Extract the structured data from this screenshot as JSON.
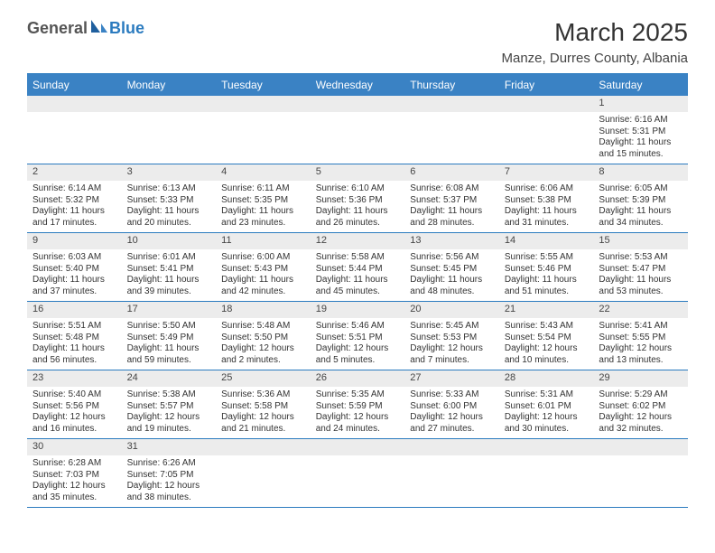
{
  "logo": {
    "general": "General",
    "blue": "Blue"
  },
  "title": "March 2025",
  "location": "Manze, Durres County, Albania",
  "dayNames": [
    "Sunday",
    "Monday",
    "Tuesday",
    "Wednesday",
    "Thursday",
    "Friday",
    "Saturday"
  ],
  "colors": {
    "headerBg": "#3a82c4",
    "border": "#2b7bbf",
    "numRowBg": "#ececec"
  },
  "weeks": [
    {
      "nums": [
        "",
        "",
        "",
        "",
        "",
        "",
        "1"
      ],
      "info": [
        null,
        null,
        null,
        null,
        null,
        null,
        {
          "sunrise": "Sunrise: 6:16 AM",
          "sunset": "Sunset: 5:31 PM",
          "daylight1": "Daylight: 11 hours",
          "daylight2": "and 15 minutes."
        }
      ]
    },
    {
      "nums": [
        "2",
        "3",
        "4",
        "5",
        "6",
        "7",
        "8"
      ],
      "info": [
        {
          "sunrise": "Sunrise: 6:14 AM",
          "sunset": "Sunset: 5:32 PM",
          "daylight1": "Daylight: 11 hours",
          "daylight2": "and 17 minutes."
        },
        {
          "sunrise": "Sunrise: 6:13 AM",
          "sunset": "Sunset: 5:33 PM",
          "daylight1": "Daylight: 11 hours",
          "daylight2": "and 20 minutes."
        },
        {
          "sunrise": "Sunrise: 6:11 AM",
          "sunset": "Sunset: 5:35 PM",
          "daylight1": "Daylight: 11 hours",
          "daylight2": "and 23 minutes."
        },
        {
          "sunrise": "Sunrise: 6:10 AM",
          "sunset": "Sunset: 5:36 PM",
          "daylight1": "Daylight: 11 hours",
          "daylight2": "and 26 minutes."
        },
        {
          "sunrise": "Sunrise: 6:08 AM",
          "sunset": "Sunset: 5:37 PM",
          "daylight1": "Daylight: 11 hours",
          "daylight2": "and 28 minutes."
        },
        {
          "sunrise": "Sunrise: 6:06 AM",
          "sunset": "Sunset: 5:38 PM",
          "daylight1": "Daylight: 11 hours",
          "daylight2": "and 31 minutes."
        },
        {
          "sunrise": "Sunrise: 6:05 AM",
          "sunset": "Sunset: 5:39 PM",
          "daylight1": "Daylight: 11 hours",
          "daylight2": "and 34 minutes."
        }
      ]
    },
    {
      "nums": [
        "9",
        "10",
        "11",
        "12",
        "13",
        "14",
        "15"
      ],
      "info": [
        {
          "sunrise": "Sunrise: 6:03 AM",
          "sunset": "Sunset: 5:40 PM",
          "daylight1": "Daylight: 11 hours",
          "daylight2": "and 37 minutes."
        },
        {
          "sunrise": "Sunrise: 6:01 AM",
          "sunset": "Sunset: 5:41 PM",
          "daylight1": "Daylight: 11 hours",
          "daylight2": "and 39 minutes."
        },
        {
          "sunrise": "Sunrise: 6:00 AM",
          "sunset": "Sunset: 5:43 PM",
          "daylight1": "Daylight: 11 hours",
          "daylight2": "and 42 minutes."
        },
        {
          "sunrise": "Sunrise: 5:58 AM",
          "sunset": "Sunset: 5:44 PM",
          "daylight1": "Daylight: 11 hours",
          "daylight2": "and 45 minutes."
        },
        {
          "sunrise": "Sunrise: 5:56 AM",
          "sunset": "Sunset: 5:45 PM",
          "daylight1": "Daylight: 11 hours",
          "daylight2": "and 48 minutes."
        },
        {
          "sunrise": "Sunrise: 5:55 AM",
          "sunset": "Sunset: 5:46 PM",
          "daylight1": "Daylight: 11 hours",
          "daylight2": "and 51 minutes."
        },
        {
          "sunrise": "Sunrise: 5:53 AM",
          "sunset": "Sunset: 5:47 PM",
          "daylight1": "Daylight: 11 hours",
          "daylight2": "and 53 minutes."
        }
      ]
    },
    {
      "nums": [
        "16",
        "17",
        "18",
        "19",
        "20",
        "21",
        "22"
      ],
      "info": [
        {
          "sunrise": "Sunrise: 5:51 AM",
          "sunset": "Sunset: 5:48 PM",
          "daylight1": "Daylight: 11 hours",
          "daylight2": "and 56 minutes."
        },
        {
          "sunrise": "Sunrise: 5:50 AM",
          "sunset": "Sunset: 5:49 PM",
          "daylight1": "Daylight: 11 hours",
          "daylight2": "and 59 minutes."
        },
        {
          "sunrise": "Sunrise: 5:48 AM",
          "sunset": "Sunset: 5:50 PM",
          "daylight1": "Daylight: 12 hours",
          "daylight2": "and 2 minutes."
        },
        {
          "sunrise": "Sunrise: 5:46 AM",
          "sunset": "Sunset: 5:51 PM",
          "daylight1": "Daylight: 12 hours",
          "daylight2": "and 5 minutes."
        },
        {
          "sunrise": "Sunrise: 5:45 AM",
          "sunset": "Sunset: 5:53 PM",
          "daylight1": "Daylight: 12 hours",
          "daylight2": "and 7 minutes."
        },
        {
          "sunrise": "Sunrise: 5:43 AM",
          "sunset": "Sunset: 5:54 PM",
          "daylight1": "Daylight: 12 hours",
          "daylight2": "and 10 minutes."
        },
        {
          "sunrise": "Sunrise: 5:41 AM",
          "sunset": "Sunset: 5:55 PM",
          "daylight1": "Daylight: 12 hours",
          "daylight2": "and 13 minutes."
        }
      ]
    },
    {
      "nums": [
        "23",
        "24",
        "25",
        "26",
        "27",
        "28",
        "29"
      ],
      "info": [
        {
          "sunrise": "Sunrise: 5:40 AM",
          "sunset": "Sunset: 5:56 PM",
          "daylight1": "Daylight: 12 hours",
          "daylight2": "and 16 minutes."
        },
        {
          "sunrise": "Sunrise: 5:38 AM",
          "sunset": "Sunset: 5:57 PM",
          "daylight1": "Daylight: 12 hours",
          "daylight2": "and 19 minutes."
        },
        {
          "sunrise": "Sunrise: 5:36 AM",
          "sunset": "Sunset: 5:58 PM",
          "daylight1": "Daylight: 12 hours",
          "daylight2": "and 21 minutes."
        },
        {
          "sunrise": "Sunrise: 5:35 AM",
          "sunset": "Sunset: 5:59 PM",
          "daylight1": "Daylight: 12 hours",
          "daylight2": "and 24 minutes."
        },
        {
          "sunrise": "Sunrise: 5:33 AM",
          "sunset": "Sunset: 6:00 PM",
          "daylight1": "Daylight: 12 hours",
          "daylight2": "and 27 minutes."
        },
        {
          "sunrise": "Sunrise: 5:31 AM",
          "sunset": "Sunset: 6:01 PM",
          "daylight1": "Daylight: 12 hours",
          "daylight2": "and 30 minutes."
        },
        {
          "sunrise": "Sunrise: 5:29 AM",
          "sunset": "Sunset: 6:02 PM",
          "daylight1": "Daylight: 12 hours",
          "daylight2": "and 32 minutes."
        }
      ]
    },
    {
      "nums": [
        "30",
        "31",
        "",
        "",
        "",
        "",
        ""
      ],
      "info": [
        {
          "sunrise": "Sunrise: 6:28 AM",
          "sunset": "Sunset: 7:03 PM",
          "daylight1": "Daylight: 12 hours",
          "daylight2": "and 35 minutes."
        },
        {
          "sunrise": "Sunrise: 6:26 AM",
          "sunset": "Sunset: 7:05 PM",
          "daylight1": "Daylight: 12 hours",
          "daylight2": "and 38 minutes."
        },
        null,
        null,
        null,
        null,
        null
      ]
    }
  ]
}
